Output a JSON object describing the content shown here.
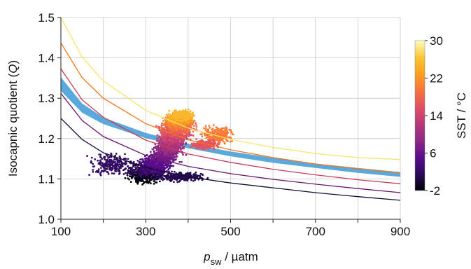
{
  "chart_data": {
    "type": "scatter",
    "xlabel_var": "p",
    "xlabel_sub": "sw",
    "xlabel_rest": " / µatm",
    "ylabel_main": "Isocapnic quotient (",
    "ylabel_var": "Q",
    "ylabel_end": ")",
    "xlim": [
      100,
      900
    ],
    "ylim": [
      1.0,
      1.5
    ],
    "x_ticks": [
      100,
      300,
      500,
      700,
      900
    ],
    "x_tick_labels": [
      "100",
      "300",
      "500",
      "700",
      "900"
    ],
    "x_minor_ticks": [
      200,
      400,
      600,
      800
    ],
    "y_ticks": [
      1.0,
      1.1,
      1.2,
      1.3,
      1.4,
      1.5
    ],
    "y_tick_labels": [
      "1.0",
      "1.1",
      "1.2",
      "1.3",
      "1.4",
      "1.5"
    ],
    "grid": true,
    "colorbar": {
      "label": "SST / °C",
      "min": -2,
      "max": 30,
      "ticks": [
        30,
        22,
        14,
        6,
        -2
      ],
      "tick_labels": [
        "30",
        "22",
        "14",
        "6",
        "-2"
      ],
      "colormap": [
        "#000004",
        "#2b0c5c",
        "#5a0c8c",
        "#8c2981",
        "#b73779",
        "#e05166",
        "#f7733c",
        "#fc9f1e",
        "#fcc535",
        "#fcfdbf"
      ]
    },
    "band": {
      "color": "#5aa9dc",
      "upper": [
        [
          100,
          1.352
        ],
        [
          150,
          1.287
        ],
        [
          200,
          1.252
        ],
        [
          300,
          1.214
        ],
        [
          400,
          1.187
        ],
        [
          500,
          1.168
        ],
        [
          600,
          1.152
        ],
        [
          700,
          1.138
        ],
        [
          800,
          1.127
        ],
        [
          900,
          1.117
        ]
      ],
      "lower": [
        [
          100,
          1.318
        ],
        [
          150,
          1.264
        ],
        [
          200,
          1.236
        ],
        [
          300,
          1.201
        ],
        [
          400,
          1.176
        ],
        [
          500,
          1.156
        ],
        [
          600,
          1.14
        ],
        [
          700,
          1.127
        ],
        [
          800,
          1.115
        ],
        [
          900,
          1.105
        ]
      ]
    },
    "isotherm_curves": [
      {
        "sst": -2,
        "color": "#140b34",
        "points": [
          [
            100,
            1.25
          ],
          [
            150,
            1.198
          ],
          [
            200,
            1.165
          ],
          [
            300,
            1.128
          ],
          [
            400,
            1.105
          ],
          [
            500,
            1.09
          ],
          [
            600,
            1.078
          ],
          [
            700,
            1.066
          ],
          [
            800,
            1.056
          ],
          [
            900,
            1.047
          ]
        ]
      },
      {
        "sst": 6,
        "color": "#6a176e",
        "points": [
          [
            100,
            1.312
          ],
          [
            150,
            1.245
          ],
          [
            200,
            1.205
          ],
          [
            300,
            1.158
          ],
          [
            400,
            1.131
          ],
          [
            500,
            1.113
          ],
          [
            600,
            1.099
          ],
          [
            700,
            1.087
          ],
          [
            800,
            1.076
          ],
          [
            900,
            1.066
          ]
        ]
      },
      {
        "sst": 14,
        "color": "#c73e5c",
        "points": [
          [
            100,
            1.373
          ],
          [
            150,
            1.296
          ],
          [
            200,
            1.253
          ],
          [
            300,
            1.196
          ],
          [
            400,
            1.162
          ],
          [
            500,
            1.141
          ],
          [
            600,
            1.124
          ],
          [
            700,
            1.11
          ],
          [
            800,
            1.098
          ],
          [
            900,
            1.088
          ]
        ]
      },
      {
        "sst": 22,
        "color": "#f3761b",
        "points": [
          [
            100,
            1.437
          ],
          [
            150,
            1.351
          ],
          [
            200,
            1.3
          ],
          [
            300,
            1.237
          ],
          [
            400,
            1.197
          ],
          [
            500,
            1.172
          ],
          [
            600,
            1.153
          ],
          [
            700,
            1.137
          ],
          [
            800,
            1.125
          ],
          [
            900,
            1.115
          ]
        ]
      },
      {
        "sst": 30,
        "color": "#f7e468",
        "points": [
          [
            100,
            1.5
          ],
          [
            150,
            1.402
          ],
          [
            200,
            1.343
          ],
          [
            300,
            1.27
          ],
          [
            400,
            1.226
          ],
          [
            500,
            1.198
          ],
          [
            600,
            1.178
          ],
          [
            700,
            1.163
          ],
          [
            800,
            1.153
          ],
          [
            900,
            1.148
          ]
        ]
      }
    ],
    "scatter_clusters": [
      {
        "sst": -1.5,
        "x": [
          245,
          345
        ],
        "y": [
          1.085,
          1.125
        ]
      },
      {
        "sst": 0,
        "x": [
          240,
          360
        ],
        "y": [
          1.095,
          1.14
        ]
      },
      {
        "sst": 1,
        "x": [
          300,
          460
        ],
        "y": [
          1.09,
          1.12
        ]
      },
      {
        "sst": 2,
        "x": [
          150,
          300
        ],
        "y": [
          1.1,
          1.17
        ]
      },
      {
        "sst": 3,
        "x": [
          260,
          370
        ],
        "y": [
          1.1,
          1.16
        ]
      },
      {
        "sst": 5,
        "x": [
          280,
          380
        ],
        "y": [
          1.11,
          1.17
        ]
      },
      {
        "sst": 7,
        "x": [
          300,
          390
        ],
        "y": [
          1.13,
          1.19
        ]
      },
      {
        "sst": 9,
        "x": [
          310,
          400
        ],
        "y": [
          1.15,
          1.2
        ]
      },
      {
        "sst": 11,
        "x": [
          320,
          400
        ],
        "y": [
          1.16,
          1.21
        ]
      },
      {
        "sst": 13,
        "x": [
          320,
          410
        ],
        "y": [
          1.18,
          1.22
        ]
      },
      {
        "sst": 15,
        "x": [
          320,
          420
        ],
        "y": [
          1.19,
          1.24
        ]
      },
      {
        "sst": 17,
        "x": [
          320,
          430
        ],
        "y": [
          1.2,
          1.25
        ]
      },
      {
        "sst": 19,
        "x": [
          330,
          430
        ],
        "y": [
          1.21,
          1.26
        ]
      },
      {
        "sst": 21,
        "x": [
          330,
          420
        ],
        "y": [
          1.22,
          1.27
        ]
      },
      {
        "sst": 23,
        "x": [
          340,
          420
        ],
        "y": [
          1.23,
          1.27
        ]
      },
      {
        "sst": 25,
        "x": [
          350,
          420
        ],
        "y": [
          1.24,
          1.275
        ]
      },
      {
        "sst": 20,
        "x": [
          420,
          520
        ],
        "y": [
          1.18,
          1.24
        ]
      },
      {
        "sst": 16,
        "x": [
          400,
          480
        ],
        "y": [
          1.17,
          1.2
        ]
      }
    ]
  }
}
